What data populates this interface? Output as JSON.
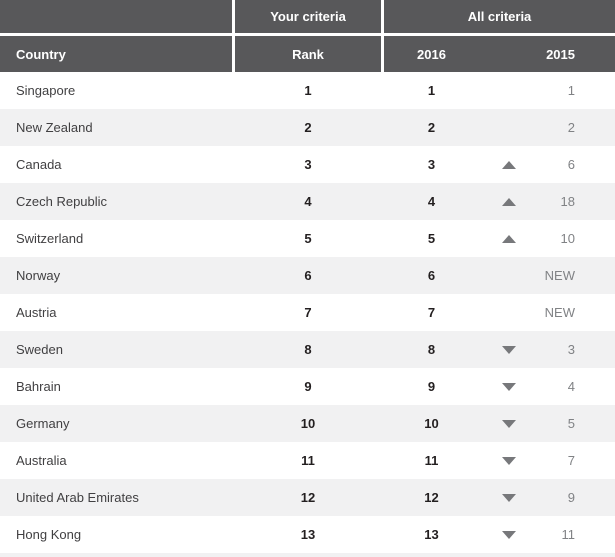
{
  "colors": {
    "header_bg": "#58585a",
    "row_alt_bg": "#f1f1f2",
    "text_dark": "#231f20",
    "text_body": "#414042",
    "text_muted": "#808285",
    "trend_icon": "#77787b"
  },
  "chart_data": {
    "type": "table",
    "column_groups": [
      "Your criteria",
      "All criteria"
    ],
    "columns": [
      "Country",
      "Rank",
      "2016",
      "2015"
    ],
    "legend": "trend arrows: up = improved vs 2015, down = dropped vs 2015",
    "rows": [
      {
        "country": "Singapore",
        "rank": "1",
        "y2016": "1",
        "trend": "none",
        "y2015": "1"
      },
      {
        "country": "New Zealand",
        "rank": "2",
        "y2016": "2",
        "trend": "none",
        "y2015": "2"
      },
      {
        "country": "Canada",
        "rank": "3",
        "y2016": "3",
        "trend": "up",
        "y2015": "6"
      },
      {
        "country": "Czech Republic",
        "rank": "4",
        "y2016": "4",
        "trend": "up",
        "y2015": "18"
      },
      {
        "country": "Switzerland",
        "rank": "5",
        "y2016": "5",
        "trend": "up",
        "y2015": "10"
      },
      {
        "country": "Norway",
        "rank": "6",
        "y2016": "6",
        "trend": "none",
        "y2015": "NEW"
      },
      {
        "country": "Austria",
        "rank": "7",
        "y2016": "7",
        "trend": "none",
        "y2015": "NEW"
      },
      {
        "country": "Sweden",
        "rank": "8",
        "y2016": "8",
        "trend": "down",
        "y2015": "3"
      },
      {
        "country": "Bahrain",
        "rank": "9",
        "y2016": "9",
        "trend": "down",
        "y2015": "4"
      },
      {
        "country": "Germany",
        "rank": "10",
        "y2016": "10",
        "trend": "down",
        "y2015": "5"
      },
      {
        "country": "Australia",
        "rank": "11",
        "y2016": "11",
        "trend": "down",
        "y2015": "7"
      },
      {
        "country": "United Arab Emirates",
        "rank": "12",
        "y2016": "12",
        "trend": "down",
        "y2015": "9"
      },
      {
        "country": "Hong Kong",
        "rank": "13",
        "y2016": "13",
        "trend": "down",
        "y2015": "11"
      }
    ]
  }
}
